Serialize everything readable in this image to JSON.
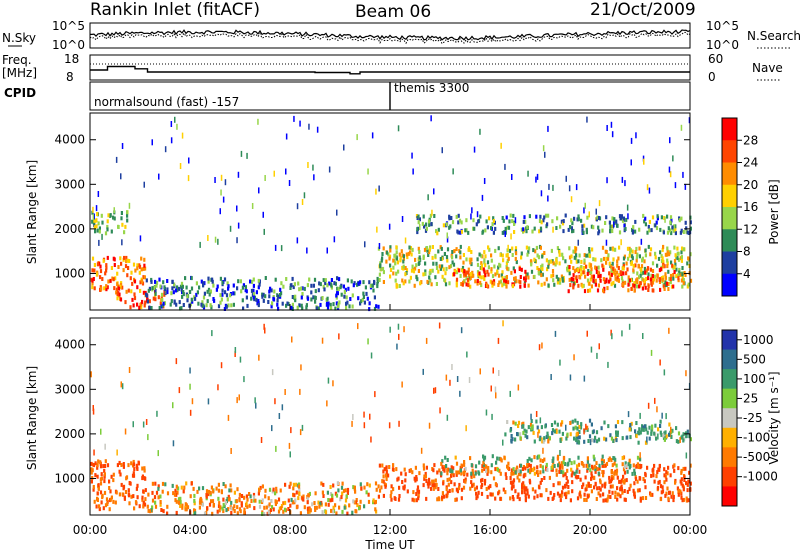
{
  "header": {
    "station": "Rankin Inlet (fitACF)",
    "beam": "Beam 06",
    "date": "21/Oct/2009"
  },
  "noise_panel": {
    "left_label": "N.Sky",
    "right_label": "N.Search",
    "ticks": [
      "10^5",
      "10^0"
    ]
  },
  "freq_panel": {
    "left_label_1": "Freq.",
    "left_label_2": "[MHz]",
    "right_label": "Nave",
    "left_ticks": [
      "18",
      "8"
    ],
    "right_ticks": [
      "60",
      "0"
    ]
  },
  "cpid_panel": {
    "label": "CPID",
    "modes": [
      {
        "name": "normalsound (fast) -157",
        "start_hour": 0
      },
      {
        "name": "themis 3300",
        "start_hour": 12
      }
    ]
  },
  "power_panel": {
    "ylabel": "Slant Range [km]",
    "colorbar_label": "Power [dB]",
    "colorbar_ticks": [
      "28",
      "24",
      "20",
      "16",
      "12",
      "8",
      "4"
    ],
    "colors": [
      "#ff0000",
      "#ff4500",
      "#ff8c00",
      "#ffd000",
      "#98d64a",
      "#2e8b57",
      "#1e3fa0",
      "#0000ff"
    ]
  },
  "velocity_panel": {
    "ylabel": "Slant Range [km]",
    "colorbar_label": "Velocity [m s⁻¹]",
    "colorbar_ticks": [
      "1000",
      "500",
      "100",
      "25",
      "-25",
      "-100",
      "-500",
      "-1000"
    ],
    "colors": [
      "#2233aa",
      "#2e6e8e",
      "#3a9a6a",
      "#7ccc3a",
      "#c8c8c0",
      "#ffb000",
      "#ff7a00",
      "#ff4000",
      "#ff0000"
    ]
  },
  "xaxis": {
    "label": "Time UT",
    "ticks": [
      "00:00",
      "04:00",
      "08:00",
      "12:00",
      "16:00",
      "20:00",
      "00:00"
    ]
  },
  "chart_data": {
    "type": "heatmap",
    "x_range_hours": [
      0,
      24
    ],
    "range_axis_km": {
      "ticks": [
        1000,
        2000,
        3000,
        4000
      ],
      "ylim": [
        180,
        4600
      ]
    },
    "frequency_MHz": [
      {
        "start": 0,
        "end": 0.7,
        "value": 12
      },
      {
        "start": 0.7,
        "end": 1.8,
        "value": 13.4
      },
      {
        "start": 1.8,
        "end": 2.3,
        "value": 12.5
      },
      {
        "start": 2.3,
        "end": 6.0,
        "value": 11.2
      },
      {
        "start": 6.0,
        "end": 9.0,
        "value": 11.2
      },
      {
        "start": 9.0,
        "end": 10.4,
        "value": 11.0
      },
      {
        "start": 10.4,
        "end": 10.8,
        "value": 10.5
      },
      {
        "start": 10.8,
        "end": 24,
        "value": 11.2
      }
    ],
    "power_db_regions": [
      {
        "t0": 0.0,
        "t1": 2.2,
        "r0": 600,
        "r1": 1400,
        "db": 24
      },
      {
        "t0": 1.0,
        "t1": 3.0,
        "r0": 200,
        "r1": 600,
        "db": 26
      },
      {
        "t0": 0.0,
        "t1": 1.5,
        "r0": 1900,
        "r1": 2400,
        "db": 12
      },
      {
        "t0": 2.2,
        "t1": 11.5,
        "r0": 200,
        "r1": 900,
        "db": 8
      },
      {
        "t0": 11.5,
        "t1": 24.0,
        "r0": 700,
        "r1": 1600,
        "db": 16
      },
      {
        "t0": 14.5,
        "t1": 17.5,
        "r0": 700,
        "r1": 1100,
        "db": 26
      },
      {
        "t0": 19.0,
        "t1": 23.5,
        "r0": 600,
        "r1": 1200,
        "db": 26
      },
      {
        "t0": 13.0,
        "t1": 24.0,
        "r0": 1900,
        "r1": 2300,
        "db": 10
      }
    ],
    "velocity_regions": [
      {
        "t0": 0.0,
        "t1": 2.2,
        "r0": 300,
        "r1": 1400,
        "v": -300
      },
      {
        "t0": 2.2,
        "t1": 11.5,
        "r0": 200,
        "r1": 900,
        "v": -150
      },
      {
        "t0": 11.5,
        "t1": 24.0,
        "r0": 500,
        "r1": 1300,
        "v": -400
      },
      {
        "t0": 14.0,
        "t1": 22.0,
        "r0": 1100,
        "r1": 1500,
        "v": 0
      },
      {
        "t0": 16.5,
        "t1": 24.0,
        "r0": 1800,
        "r1": 2300,
        "v": 150
      }
    ]
  }
}
